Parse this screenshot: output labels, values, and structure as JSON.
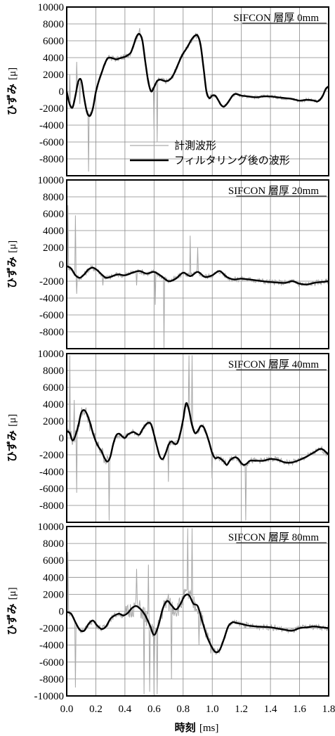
{
  "chart_data": {
    "type": "line",
    "xlabel": "時刻 [ms]",
    "x_ticks": [
      "0.0",
      "0.2",
      "0.4",
      "0.6",
      "0.8",
      "1.0",
      "1.2",
      "1.4",
      "1.6",
      "1.8"
    ],
    "xlim": [
      0,
      1.8
    ],
    "grid": true,
    "legend": {
      "position": "bottom-center (panel 1)",
      "entries": [
        {
          "label": "計測波形",
          "color": "#aaaaaa"
        },
        {
          "label": "フィルタリング後の波形",
          "color": "#000000"
        }
      ]
    },
    "panels": [
      {
        "title": "SIFCON 層厚 0mm",
        "ylabel": "ひずみ [μ]",
        "ylim": [
          -10000,
          10000
        ],
        "y_ticks": [
          "10000",
          "8000",
          "6000",
          "4000",
          "2000",
          "0",
          "-2000",
          "-4000",
          "-6000",
          "-8000"
        ],
        "series": [
          {
            "name": "フィルタリング後の波形",
            "x": [
              0,
              0.02,
              0.04,
              0.06,
              0.08,
              0.1,
              0.12,
              0.14,
              0.16,
              0.18,
              0.2,
              0.22,
              0.24,
              0.26,
              0.28,
              0.3,
              0.32,
              0.34,
              0.36,
              0.38,
              0.4,
              0.42,
              0.44,
              0.46,
              0.48,
              0.5,
              0.52,
              0.54,
              0.56,
              0.58,
              0.6,
              0.62,
              0.64,
              0.66,
              0.68,
              0.7,
              0.72,
              0.74,
              0.76,
              0.78,
              0.8,
              0.82,
              0.84,
              0.86,
              0.88,
              0.9,
              0.92,
              0.94,
              0.96,
              0.98,
              1.0,
              1.02,
              1.04,
              1.06,
              1.08,
              1.1,
              1.12,
              1.14,
              1.16,
              1.2,
              1.25,
              1.3,
              1.35,
              1.4,
              1.45,
              1.5,
              1.55,
              1.6,
              1.65,
              1.7,
              1.72,
              1.74,
              1.76,
              1.78,
              1.8
            ],
            "y": [
              0,
              -1500,
              -1900,
              -500,
              1200,
              1300,
              -800,
              -2500,
              -2900,
              -2000,
              -100,
              1200,
              2200,
              3200,
              3900,
              4000,
              3900,
              3800,
              3900,
              4000,
              4100,
              4300,
              4600,
              5500,
              6500,
              6800,
              6000,
              3500,
              1200,
              0,
              500,
              1200,
              1400,
              1300,
              1200,
              1300,
              1600,
              2200,
              3000,
              3800,
              4500,
              5000,
              5600,
              6200,
              6600,
              6600,
              5500,
              2800,
              0,
              -800,
              -500,
              -500,
              -1000,
              -1600,
              -1800,
              -1500,
              -1000,
              -500,
              -300,
              -500,
              -600,
              -700,
              -600,
              -600,
              -700,
              -800,
              -900,
              -1100,
              -1000,
              -1100,
              -1200,
              -1000,
              -500,
              300,
              600
            ]
          },
          {
            "name": "計測波形",
            "spikes": [
              [
                0.02,
                2000
              ],
              [
                0.07,
                3500
              ],
              [
                0.09,
                -1500
              ],
              [
                0.15,
                -9500
              ],
              [
                0.5,
                7500
              ],
              [
                0.52,
                6500
              ],
              [
                0.56,
                1500
              ],
              [
                0.6,
                -4500
              ],
              [
                0.62,
                -6000
              ],
              [
                0.9,
                6800
              ]
            ]
          }
        ]
      },
      {
        "title": "SIFCON 層厚 20mm",
        "ylabel": "ひずみ [μ]",
        "ylim": [
          -10000,
          10000
        ],
        "y_ticks": [
          "10000",
          "8000",
          "6000",
          "4000",
          "2000",
          "0",
          "-2000",
          "-4000",
          "-6000",
          "-8000"
        ],
        "series": [
          {
            "name": "フィルタリング後の波形",
            "x": [
              0,
              0.03,
              0.06,
              0.09,
              0.12,
              0.15,
              0.18,
              0.21,
              0.24,
              0.27,
              0.3,
              0.35,
              0.4,
              0.45,
              0.5,
              0.55,
              0.6,
              0.65,
              0.7,
              0.75,
              0.8,
              0.85,
              0.9,
              0.95,
              1.0,
              1.05,
              1.1,
              1.15,
              1.2,
              1.3,
              1.4,
              1.5,
              1.55,
              1.6,
              1.65,
              1.7,
              1.75,
              1.8
            ],
            "y": [
              -200,
              -500,
              -1300,
              -1600,
              -1200,
              -600,
              -400,
              -700,
              -1200,
              -1600,
              -1500,
              -1200,
              -1300,
              -1000,
              -800,
              -1100,
              -900,
              -1400,
              -2000,
              -1700,
              -1000,
              -1400,
              -900,
              -1500,
              -1300,
              -800,
              -1500,
              -1800,
              -1700,
              -1900,
              -2100,
              -2200,
              -2000,
              -2300,
              -2400,
              -2200,
              -2100,
              -2000
            ]
          },
          {
            "name": "計測波形",
            "spikes": [
              [
                0.01,
                7000
              ],
              [
                0.06,
                5800
              ],
              [
                0.07,
                -3500
              ],
              [
                0.25,
                -2500
              ],
              [
                0.48,
                -2500
              ],
              [
                0.61,
                -4800
              ],
              [
                0.67,
                -9900
              ],
              [
                0.85,
                3400
              ],
              [
                0.9,
                2000
              ]
            ]
          }
        ]
      },
      {
        "title": "SIFCON 層厚 40mm",
        "ylabel": "ひずみ [μ]",
        "ylim": [
          -10000,
          10000
        ],
        "y_ticks": [
          "10000",
          "8000",
          "6000",
          "4000",
          "2000",
          "0",
          "-2000",
          "-4000",
          "-6000",
          "-8000"
        ],
        "series": [
          {
            "name": "フィルタリング後の波形",
            "x": [
              0,
              0.02,
              0.04,
              0.06,
              0.08,
              0.1,
              0.12,
              0.14,
              0.16,
              0.18,
              0.2,
              0.22,
              0.24,
              0.26,
              0.28,
              0.3,
              0.32,
              0.34,
              0.36,
              0.38,
              0.4,
              0.42,
              0.44,
              0.46,
              0.48,
              0.5,
              0.52,
              0.54,
              0.56,
              0.58,
              0.6,
              0.62,
              0.64,
              0.66,
              0.68,
              0.7,
              0.72,
              0.74,
              0.76,
              0.78,
              0.8,
              0.82,
              0.84,
              0.86,
              0.88,
              0.9,
              0.92,
              0.94,
              0.96,
              0.98,
              1.0,
              1.02,
              1.04,
              1.06,
              1.08,
              1.1,
              1.12,
              1.14,
              1.16,
              1.18,
              1.2,
              1.22,
              1.24,
              1.26,
              1.3,
              1.35,
              1.4,
              1.45,
              1.5,
              1.55,
              1.6,
              1.65,
              1.7,
              1.75,
              1.8
            ],
            "y": [
              800,
              600,
              -300,
              300,
              1500,
              3000,
              3300,
              2800,
              1800,
              600,
              -400,
              -1100,
              -1600,
              -2400,
              -2800,
              -2200,
              -700,
              300,
              500,
              200,
              0,
              400,
              600,
              700,
              500,
              400,
              1000,
              1500,
              1800,
              1600,
              400,
              -1000,
              -2200,
              -2500,
              -1800,
              -800,
              -400,
              -700,
              -600,
              500,
              2200,
              4100,
              3300,
              1600,
              600,
              800,
              1400,
              1300,
              500,
              -600,
              -1800,
              -2400,
              -2300,
              -2500,
              -2800,
              -3200,
              -2700,
              -2400,
              -2300,
              -2500,
              -3000,
              -3200,
              -3000,
              -2700,
              -2700,
              -2700,
              -2500,
              -2600,
              -2900,
              -2900,
              -2600,
              -2200,
              -1700,
              -1300,
              -2000
            ]
          },
          {
            "name": "計測波形",
            "spikes": [
              [
                0.02,
                9800
              ],
              [
                0.05,
                4500
              ],
              [
                0.07,
                -6500
              ],
              [
                0.16,
                800
              ],
              [
                0.29,
                -9800
              ],
              [
                0.7,
                -5200
              ],
              [
                0.84,
                9800
              ],
              [
                0.86,
                9800
              ],
              [
                1.0,
                -4800
              ],
              [
                1.23,
                -9800
              ]
            ]
          }
        ]
      },
      {
        "title": "SIFCON 層厚 80mm",
        "ylabel": "ひずみ [μ]",
        "ylim": [
          -10000,
          10000
        ],
        "y_ticks": [
          "10000",
          "8000",
          "6000",
          "4000",
          "2000",
          "0",
          "-2000",
          "-4000",
          "-6000",
          "-8000",
          "-10000"
        ],
        "series": [
          {
            "name": "フィルタリング後の波形",
            "x": [
              0,
              0.03,
              0.06,
              0.09,
              0.12,
              0.15,
              0.18,
              0.21,
              0.24,
              0.27,
              0.3,
              0.33,
              0.36,
              0.39,
              0.42,
              0.45,
              0.48,
              0.51,
              0.54,
              0.57,
              0.6,
              0.63,
              0.66,
              0.69,
              0.72,
              0.75,
              0.78,
              0.81,
              0.84,
              0.87,
              0.9,
              0.93,
              0.96,
              0.99,
              1.02,
              1.05,
              1.08,
              1.11,
              1.14,
              1.17,
              1.2,
              1.25,
              1.3,
              1.4,
              1.5,
              1.55,
              1.6,
              1.65,
              1.7,
              1.75,
              1.8
            ],
            "y": [
              -100,
              -300,
              -1300,
              -2200,
              -2300,
              -1500,
              -1100,
              -1700,
              -2100,
              -1800,
              -900,
              -500,
              -300,
              -500,
              -200,
              400,
              600,
              200,
              -500,
              -1600,
              -2800,
              -1700,
              300,
              1200,
              700,
              200,
              800,
              1800,
              1900,
              900,
              600,
              -1100,
              -2800,
              -4000,
              -4800,
              -4600,
              -3300,
              -1800,
              -1300,
              -1400,
              -1500,
              -1700,
              -1800,
              -1900,
              -2200,
              -2300,
              -2000,
              -1900,
              -1800,
              -1900,
              -2000
            ]
          },
          {
            "name": "計測波形",
            "spikes": [
              [
                0.01,
                7000
              ],
              [
                0.06,
                -9000
              ],
              [
                0.48,
                5000
              ],
              [
                0.53,
                -9800
              ],
              [
                0.56,
                5500
              ],
              [
                0.57,
                -9500
              ],
              [
                0.6,
                -9800
              ],
              [
                0.62,
                -9800
              ],
              [
                0.72,
                -8000
              ],
              [
                0.83,
                9800
              ],
              [
                0.86,
                9800
              ],
              [
                0.91,
                -4000
              ]
            ]
          }
        ]
      }
    ]
  }
}
